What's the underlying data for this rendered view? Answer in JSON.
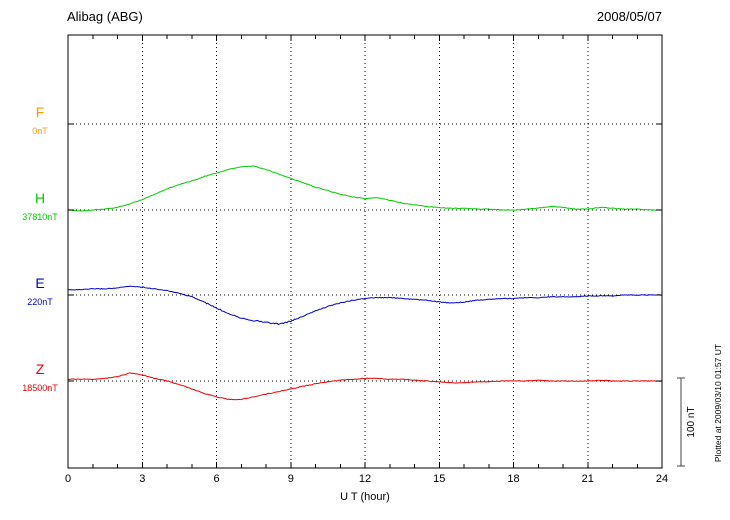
{
  "header": {
    "title": "Alibag (ABG)",
    "date": "2008/05/07"
  },
  "chart_data": {
    "type": "line",
    "title": "Alibag (ABG)",
    "date": "2008/05/07",
    "xlabel": "U T (hour)",
    "x_range": [
      0,
      24
    ],
    "x_step_hours": 0.5,
    "xticks": [
      0,
      3,
      6,
      9,
      12,
      15,
      18,
      21,
      24
    ],
    "grid": "dotted vertical at 3h, dotted horizontal at each component baseline",
    "legend_position": "left-margin component labels",
    "scale": {
      "label": "100 nT",
      "nT_per_div": 100
    },
    "note": "Plotted at 2009/03/10 01:57 UT",
    "series": [
      {
        "name": "F",
        "baseline_label": "0nT",
        "baseline_nT": 0,
        "color": "#ff9900",
        "offsets_nT": []
      },
      {
        "name": "H",
        "baseline_label": "37810nT",
        "baseline_nT": 37810,
        "color": "#00cc00",
        "offsets_nT": [
          0,
          -1,
          0,
          1,
          3,
          7,
          12,
          18,
          24,
          29,
          33,
          38,
          42,
          46,
          49,
          50,
          46,
          41,
          36,
          31,
          26,
          22,
          18,
          15,
          13,
          14,
          11,
          8,
          6,
          4,
          3,
          2,
          2,
          1,
          1,
          0,
          0,
          1,
          2,
          4,
          3,
          1,
          1,
          3,
          2,
          1,
          1,
          0,
          0
        ]
      },
      {
        "name": "E",
        "baseline_label": "220nT",
        "baseline_nT": 220,
        "color": "#0000cc",
        "offsets_nT": [
          6,
          6,
          7,
          7,
          8,
          10,
          9,
          7,
          5,
          2,
          -2,
          -8,
          -15,
          -21,
          -26,
          -29,
          -31,
          -33,
          -30,
          -24,
          -18,
          -13,
          -9,
          -6,
          -4,
          -3,
          -3,
          -4,
          -5,
          -6,
          -8,
          -9,
          -8,
          -6,
          -5,
          -4,
          -4,
          -3,
          -3,
          -2,
          -2,
          -2,
          -1,
          -1,
          -1,
          0,
          0,
          0,
          0
        ]
      },
      {
        "name": "Z",
        "baseline_label": "18500nT",
        "baseline_nT": 18500,
        "color": "#ee0000",
        "offsets_nT": [
          2,
          2,
          2,
          3,
          5,
          9,
          7,
          3,
          0,
          -4,
          -9,
          -14,
          -18,
          -21,
          -21,
          -18,
          -15,
          -12,
          -9,
          -6,
          -3,
          -1,
          1,
          2,
          3,
          3,
          2,
          2,
          1,
          0,
          -1,
          -2,
          -2,
          -1,
          -1,
          0,
          0,
          0,
          1,
          0,
          0,
          0,
          0,
          1,
          0,
          0,
          0,
          0,
          0
        ]
      }
    ]
  }
}
